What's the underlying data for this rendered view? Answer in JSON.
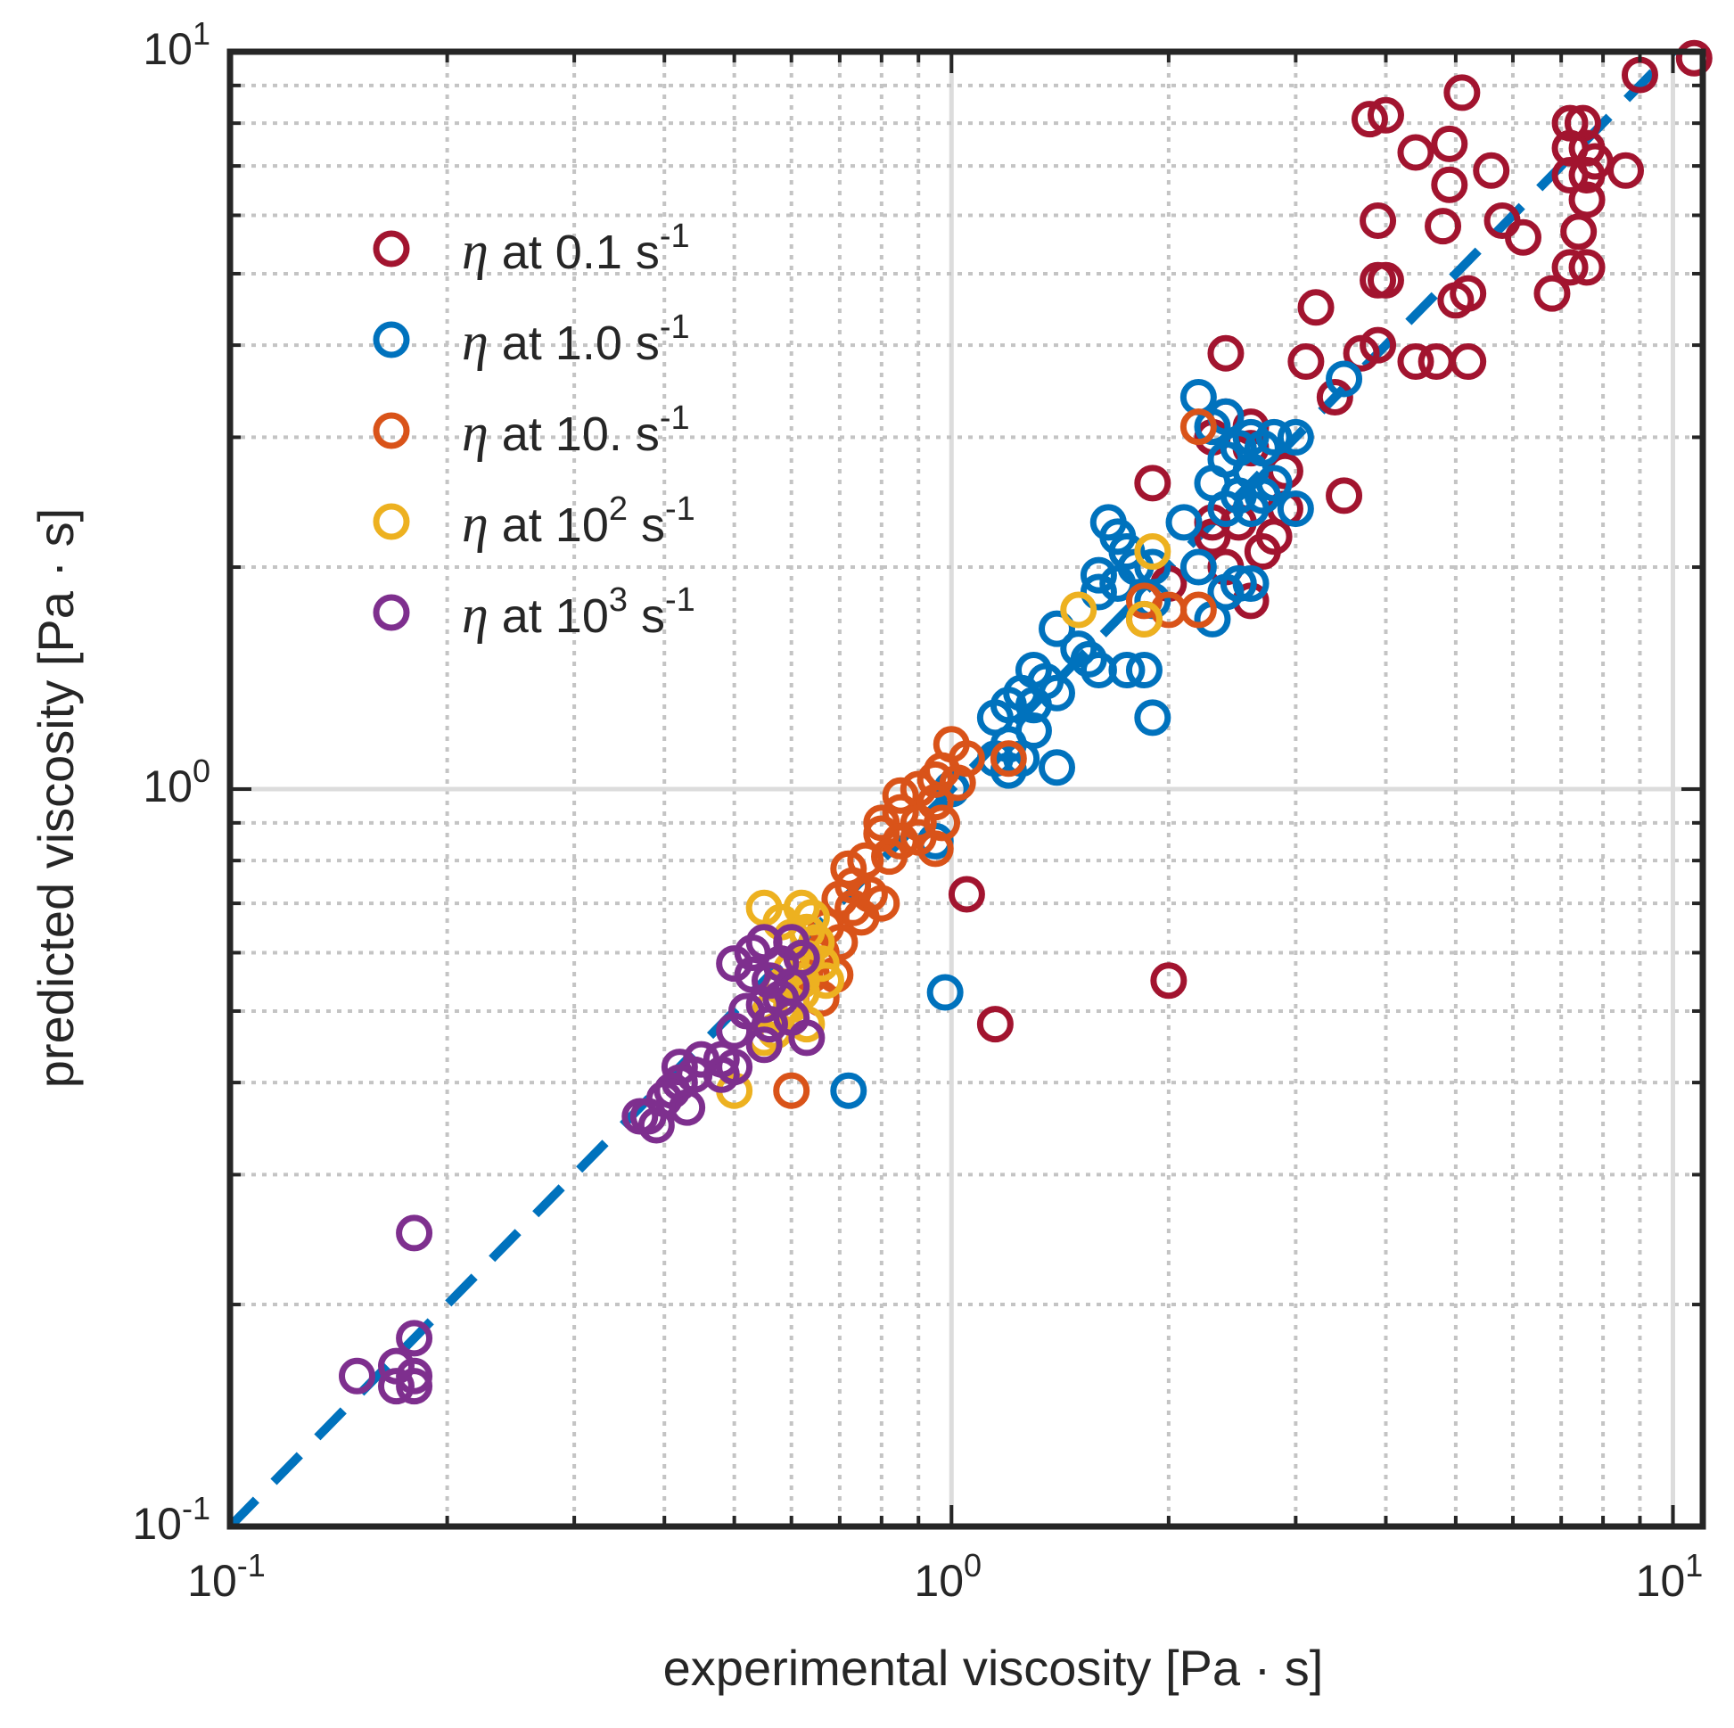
{
  "chart_data": {
    "type": "scatter",
    "x_scale": "log",
    "y_scale": "log",
    "xlim": [
      0.1,
      11
    ],
    "ylim": [
      0.1,
      10
    ],
    "xlabel": "experimental viscosity [Pa · s]",
    "ylabel": "predicted viscosity [Pa · s]",
    "grid": true,
    "legend_position": "top-left",
    "ticks": [
      {
        "value": 0.1,
        "base": "10",
        "exp": "-1"
      },
      {
        "value": 1,
        "base": "10",
        "exp": "0"
      },
      {
        "value": 10,
        "base": "10",
        "exp": "1"
      }
    ],
    "reference_line": {
      "style": "dashed",
      "color": "#0072BD",
      "slope": 1,
      "x": [
        0.1,
        10
      ],
      "y": [
        0.1,
        10
      ]
    },
    "series": [
      {
        "name": "η at 0.1 s-1",
        "label": {
          "symbol": "η",
          "text": " at 0.1 s",
          "sup": "-1"
        },
        "color": "#A2142F",
        "points": [
          [
            10.7,
            9.8
          ],
          [
            9.0,
            9.3
          ],
          [
            8.6,
            6.9
          ],
          [
            5.1,
            8.8
          ],
          [
            3.8,
            8.1
          ],
          [
            4.0,
            8.2
          ],
          [
            4.4,
            7.3
          ],
          [
            4.9,
            7.5
          ],
          [
            4.9,
            6.6
          ],
          [
            5.6,
            6.9
          ],
          [
            7.2,
            8.0
          ],
          [
            7.5,
            8.0
          ],
          [
            7.2,
            7.4
          ],
          [
            7.6,
            7.4
          ],
          [
            7.8,
            7.1
          ],
          [
            7.2,
            6.8
          ],
          [
            7.6,
            6.8
          ],
          [
            7.6,
            6.3
          ],
          [
            3.9,
            5.9
          ],
          [
            4.8,
            5.8
          ],
          [
            5.8,
            5.9
          ],
          [
            6.2,
            5.6
          ],
          [
            7.4,
            5.7
          ],
          [
            7.2,
            5.1
          ],
          [
            7.6,
            5.1
          ],
          [
            3.9,
            4.9
          ],
          [
            4.0,
            4.9
          ],
          [
            5.0,
            4.6
          ],
          [
            5.2,
            4.7
          ],
          [
            6.8,
            4.7
          ],
          [
            3.2,
            4.5
          ],
          [
            3.7,
            3.9
          ],
          [
            3.9,
            4.0
          ],
          [
            4.4,
            3.8
          ],
          [
            4.7,
            3.8
          ],
          [
            5.2,
            3.8
          ],
          [
            3.1,
            3.8
          ],
          [
            2.4,
            3.9
          ],
          [
            3.4,
            3.4
          ],
          [
            3.5,
            2.5
          ],
          [
            2.4,
            3.2
          ],
          [
            2.6,
            3.1
          ],
          [
            2.3,
            3.0
          ],
          [
            2.6,
            2.9
          ],
          [
            2.9,
            2.7
          ],
          [
            2.9,
            2.4
          ],
          [
            1.9,
            2.6
          ],
          [
            2.3,
            2.3
          ],
          [
            2.5,
            2.3
          ],
          [
            2.7,
            2.1
          ],
          [
            2.3,
            2.2
          ],
          [
            2.4,
            2.0
          ],
          [
            2.8,
            2.2
          ],
          [
            2.6,
            1.8
          ],
          [
            2.0,
            1.9
          ],
          [
            1.05,
            0.72
          ],
          [
            2.0,
            0.55
          ],
          [
            1.15,
            0.48
          ]
        ]
      },
      {
        "name": "η at 1.0 s-1",
        "label": {
          "symbol": "η",
          "text": " at 1.0 s",
          "sup": "-1"
        },
        "color": "#0072BD",
        "points": [
          [
            3.5,
            3.6
          ],
          [
            2.2,
            3.4
          ],
          [
            2.4,
            3.2
          ],
          [
            2.3,
            3.1
          ],
          [
            2.6,
            3.0
          ],
          [
            2.8,
            3.0
          ],
          [
            3.0,
            3.0
          ],
          [
            2.7,
            2.9
          ],
          [
            2.5,
            2.9
          ],
          [
            2.4,
            2.8
          ],
          [
            2.6,
            2.7
          ],
          [
            2.8,
            2.6
          ],
          [
            2.3,
            2.6
          ],
          [
            2.5,
            2.5
          ],
          [
            2.7,
            2.5
          ],
          [
            2.4,
            2.4
          ],
          [
            2.6,
            2.4
          ],
          [
            3.0,
            2.4
          ],
          [
            1.65,
            2.3
          ],
          [
            2.1,
            2.3
          ],
          [
            1.7,
            2.2
          ],
          [
            1.75,
            2.1
          ],
          [
            1.8,
            2.0
          ],
          [
            1.9,
            2.0
          ],
          [
            1.6,
            1.95
          ],
          [
            1.7,
            1.9
          ],
          [
            2.2,
            2.0
          ],
          [
            2.6,
            1.9
          ],
          [
            2.5,
            1.9
          ],
          [
            2.4,
            1.85
          ],
          [
            1.6,
            1.85
          ],
          [
            1.9,
            1.8
          ],
          [
            2.3,
            1.7
          ],
          [
            1.4,
            1.65
          ],
          [
            1.5,
            1.55
          ],
          [
            1.55,
            1.5
          ],
          [
            1.6,
            1.45
          ],
          [
            1.75,
            1.45
          ],
          [
            1.85,
            1.45
          ],
          [
            1.3,
            1.45
          ],
          [
            1.35,
            1.4
          ],
          [
            1.25,
            1.35
          ],
          [
            1.4,
            1.35
          ],
          [
            1.2,
            1.3
          ],
          [
            1.3,
            1.3
          ],
          [
            1.15,
            1.25
          ],
          [
            1.3,
            1.2
          ],
          [
            1.2,
            1.15
          ],
          [
            1.25,
            1.1
          ],
          [
            1.15,
            1.1
          ],
          [
            1.2,
            1.06
          ],
          [
            1.4,
            1.07
          ],
          [
            1.9,
            1.25
          ],
          [
            1.0,
            1.0
          ],
          [
            0.95,
            0.85
          ],
          [
            0.98,
            0.53
          ],
          [
            0.72,
            0.39
          ]
        ]
      },
      {
        "name": "η at 10. s-1",
        "label": {
          "symbol": "η",
          "text": " at 10. s",
          "sup": "-1"
        },
        "color": "#D95319",
        "points": [
          [
            2.2,
            3.1
          ],
          [
            1.85,
            1.8
          ],
          [
            2.0,
            1.75
          ],
          [
            2.2,
            1.75
          ],
          [
            1.85,
            1.7
          ],
          [
            1.2,
            1.1
          ],
          [
            1.0,
            1.15
          ],
          [
            1.05,
            1.1
          ],
          [
            0.97,
            1.06
          ],
          [
            0.95,
            1.03
          ],
          [
            1.02,
            1.02
          ],
          [
            0.9,
            1.0
          ],
          [
            0.85,
            0.98
          ],
          [
            0.95,
            0.96
          ],
          [
            0.85,
            0.93
          ],
          [
            0.8,
            0.9
          ],
          [
            0.9,
            0.9
          ],
          [
            0.97,
            0.9
          ],
          [
            0.8,
            0.87
          ],
          [
            0.85,
            0.85
          ],
          [
            0.9,
            0.86
          ],
          [
            0.95,
            0.83
          ],
          [
            0.82,
            0.81
          ],
          [
            0.76,
            0.8
          ],
          [
            0.72,
            0.78
          ],
          [
            0.73,
            0.74
          ],
          [
            0.77,
            0.72
          ],
          [
            0.7,
            0.71
          ],
          [
            0.73,
            0.69
          ],
          [
            0.8,
            0.7
          ],
          [
            0.75,
            0.67
          ],
          [
            0.67,
            0.65
          ],
          [
            0.7,
            0.62
          ],
          [
            0.66,
            0.6
          ],
          [
            0.69,
            0.56
          ],
          [
            0.64,
            0.56
          ],
          [
            0.66,
            0.52
          ],
          [
            0.6,
            0.39
          ]
        ]
      },
      {
        "name": "η at 10^2 s-1",
        "label": {
          "symbol": "η",
          "text": " at 10",
          "mid_sup": "2",
          "text2": " s",
          "sup": "-1"
        },
        "color": "#EDB120",
        "points": [
          [
            1.9,
            2.1
          ],
          [
            1.5,
            1.75
          ],
          [
            1.85,
            1.7
          ],
          [
            0.55,
            0.69
          ],
          [
            0.62,
            0.69
          ],
          [
            0.64,
            0.67
          ],
          [
            0.58,
            0.66
          ],
          [
            0.63,
            0.64
          ],
          [
            0.6,
            0.63
          ],
          [
            0.65,
            0.62
          ],
          [
            0.63,
            0.59
          ],
          [
            0.66,
            0.58
          ],
          [
            0.6,
            0.57
          ],
          [
            0.62,
            0.55
          ],
          [
            0.67,
            0.55
          ],
          [
            0.58,
            0.54
          ],
          [
            0.62,
            0.53
          ],
          [
            0.6,
            0.51
          ],
          [
            0.56,
            0.5
          ],
          [
            0.6,
            0.49
          ],
          [
            0.63,
            0.48
          ],
          [
            0.57,
            0.47
          ],
          [
            0.55,
            0.46
          ],
          [
            0.5,
            0.39
          ]
        ]
      },
      {
        "name": "η at 10^3 s-1",
        "label": {
          "symbol": "η",
          "text": " at 10",
          "mid_sup": "3",
          "text2": " s",
          "sup": "-1"
        },
        "color": "#7E2F8E",
        "points": [
          [
            0.55,
            0.62
          ],
          [
            0.6,
            0.62
          ],
          [
            0.53,
            0.6
          ],
          [
            0.58,
            0.58
          ],
          [
            0.62,
            0.59
          ],
          [
            0.5,
            0.58
          ],
          [
            0.53,
            0.56
          ],
          [
            0.56,
            0.55
          ],
          [
            0.6,
            0.54
          ],
          [
            0.58,
            0.52
          ],
          [
            0.55,
            0.51
          ],
          [
            0.52,
            0.5
          ],
          [
            0.6,
            0.49
          ],
          [
            0.56,
            0.48
          ],
          [
            0.5,
            0.47
          ],
          [
            0.63,
            0.46
          ],
          [
            0.55,
            0.45
          ],
          [
            0.48,
            0.43
          ],
          [
            0.5,
            0.42
          ],
          [
            0.45,
            0.43
          ],
          [
            0.42,
            0.42
          ],
          [
            0.44,
            0.41
          ],
          [
            0.48,
            0.41
          ],
          [
            0.42,
            0.4
          ],
          [
            0.41,
            0.39
          ],
          [
            0.4,
            0.38
          ],
          [
            0.43,
            0.37
          ],
          [
            0.38,
            0.36
          ],
          [
            0.37,
            0.36
          ],
          [
            0.39,
            0.35
          ],
          [
            0.18,
            0.25
          ],
          [
            0.18,
            0.18
          ],
          [
            0.17,
            0.165
          ],
          [
            0.15,
            0.16
          ],
          [
            0.18,
            0.16
          ],
          [
            0.17,
            0.155
          ],
          [
            0.18,
            0.155
          ]
        ]
      }
    ]
  }
}
